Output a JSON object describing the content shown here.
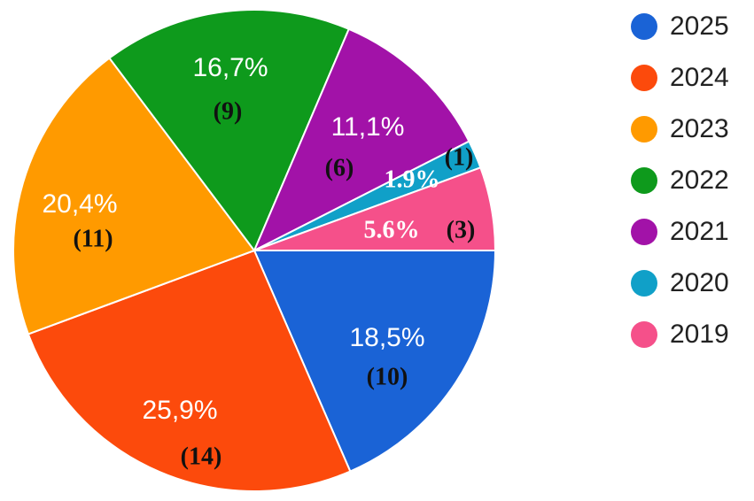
{
  "chart_data": {
    "type": "pie",
    "categories": [
      "2025",
      "2024",
      "2023",
      "2022",
      "2021",
      "2020",
      "2019"
    ],
    "values": [
      18.5,
      25.9,
      20.4,
      16.7,
      11.1,
      1.9,
      5.6
    ],
    "value_labels": [
      "18,5%",
      "25,9%",
      "20,4%",
      "16,7%",
      "11,1%",
      "1.9%",
      "5.6%"
    ],
    "counts": [
      10,
      14,
      11,
      9,
      6,
      1,
      3
    ],
    "count_labels": [
      "(10)",
      "(14)",
      "(11)",
      "(9)",
      "(6)",
      "(1)",
      "(3)"
    ],
    "colors": [
      "#1a63d6",
      "#fc4a0c",
      "#ff9a00",
      "#0e9a1c",
      "#a212a8",
      "#10a0c8",
      "#f5508a"
    ],
    "legend": "right"
  }
}
